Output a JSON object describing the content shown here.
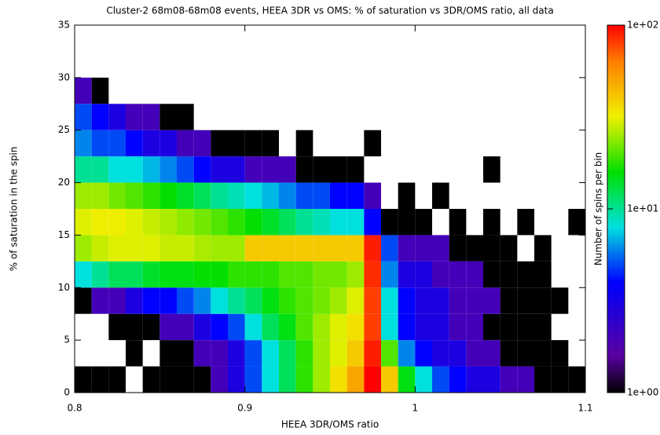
{
  "chart_data": {
    "type": "heatmap",
    "title": "Cluster-2 68m08-68m08 events, HEEA 3DR vs OMS: % of saturation vs 3DR/OMS ratio, all data",
    "xlabel": "HEEA 3DR/OMS ratio",
    "ylabel": "% of saturation in the spin",
    "xlim": [
      0.8,
      1.1
    ],
    "xticks": [
      0.8,
      0.9,
      1,
      1.1
    ],
    "ylim": [
      0,
      35
    ],
    "yticks": [
      0,
      5,
      10,
      15,
      20,
      25,
      30,
      35
    ],
    "xbins": [
      0.8,
      0.81,
      0.82,
      0.83,
      0.84,
      0.85,
      0.86,
      0.87,
      0.88,
      0.89,
      0.9,
      0.91,
      0.92,
      0.93,
      0.94,
      0.95,
      0.96,
      0.97,
      0.98,
      0.99,
      1,
      1.01,
      1.02,
      1.03,
      1.04,
      1.05,
      1.06,
      1.07,
      1.08,
      1.09,
      1.1
    ],
    "ybins": [
      0,
      2.5,
      5,
      7.5,
      10,
      12.5,
      15,
      17.5,
      20,
      22.5,
      25,
      27.5,
      30,
      32.5,
      35
    ],
    "z": [
      [
        1,
        1,
        1,
        null,
        1,
        1,
        1,
        1,
        2,
        3,
        5,
        8,
        12,
        18,
        25,
        35,
        50,
        100,
        40,
        15,
        8,
        5,
        4,
        3,
        3,
        2,
        2,
        1,
        1,
        1
      ],
      [
        null,
        null,
        null,
        1,
        null,
        1,
        1,
        2,
        2,
        3,
        5,
        8,
        12,
        18,
        25,
        30,
        40,
        90,
        20,
        6,
        4,
        3,
        3,
        2,
        2,
        1,
        1,
        1,
        1,
        null
      ],
      [
        null,
        null,
        1,
        1,
        1,
        2,
        2,
        3,
        4,
        5,
        8,
        12,
        15,
        20,
        25,
        30,
        35,
        80,
        8,
        4,
        3,
        3,
        2,
        2,
        1,
        1,
        1,
        1,
        null,
        null
      ],
      [
        1,
        2,
        2,
        3,
        4,
        4,
        5,
        6,
        8,
        10,
        12,
        15,
        18,
        20,
        22,
        25,
        30,
        80,
        8,
        4,
        3,
        3,
        2,
        2,
        2,
        1,
        1,
        1,
        1,
        null
      ],
      [
        8,
        10,
        12,
        12,
        14,
        15,
        15,
        16,
        16,
        18,
        18,
        18,
        20,
        20,
        22,
        22,
        25,
        85,
        6,
        3,
        3,
        2,
        2,
        2,
        1,
        1,
        1,
        1,
        null,
        null
      ],
      [
        25,
        28,
        30,
        30,
        30,
        28,
        28,
        26,
        25,
        25,
        40,
        40,
        40,
        40,
        40,
        40,
        40,
        90,
        5,
        2,
        2,
        2,
        1,
        1,
        1,
        1,
        null,
        1,
        null,
        null
      ],
      [
        30,
        32,
        32,
        30,
        28,
        26,
        24,
        22,
        20,
        18,
        16,
        14,
        12,
        10,
        9,
        8,
        8,
        4,
        1,
        1,
        1,
        null,
        1,
        null,
        1,
        null,
        1,
        null,
        null,
        1
      ],
      [
        25,
        25,
        22,
        20,
        18,
        16,
        14,
        12,
        10,
        9,
        8,
        7,
        6,
        5,
        5,
        4,
        4,
        2,
        null,
        1,
        null,
        1,
        null,
        null,
        null,
        null,
        null,
        null,
        null,
        null
      ],
      [
        10,
        10,
        8,
        8,
        7,
        6,
        5,
        4,
        3,
        3,
        2,
        2,
        2,
        1,
        1,
        1,
        1,
        null,
        null,
        null,
        null,
        null,
        null,
        null,
        1,
        null,
        null,
        null,
        null,
        null
      ],
      [
        6,
        5,
        5,
        4,
        3,
        3,
        2,
        2,
        1,
        1,
        1,
        1,
        null,
        1,
        null,
        null,
        null,
        1,
        null,
        null,
        null,
        null,
        null,
        null,
        null,
        null,
        null,
        null,
        null,
        null
      ],
      [
        5,
        4,
        3,
        2,
        2,
        1,
        1,
        null,
        null,
        null,
        null,
        null,
        null,
        null,
        null,
        null,
        null,
        null,
        null,
        null,
        null,
        null,
        null,
        null,
        null,
        null,
        null,
        null,
        null,
        null
      ],
      [
        2,
        1,
        null,
        null,
        null,
        null,
        null,
        null,
        null,
        null,
        null,
        null,
        null,
        null,
        null,
        null,
        null,
        null,
        null,
        null,
        null,
        null,
        null,
        null,
        null,
        null,
        null,
        null,
        null,
        null
      ],
      [
        null,
        null,
        null,
        null,
        null,
        null,
        null,
        null,
        null,
        null,
        null,
        null,
        null,
        null,
        null,
        null,
        null,
        null,
        null,
        null,
        null,
        null,
        null,
        null,
        null,
        null,
        null,
        null,
        null,
        null
      ],
      [
        null,
        null,
        null,
        null,
        null,
        null,
        null,
        null,
        null,
        null,
        null,
        null,
        null,
        null,
        null,
        null,
        null,
        null,
        null,
        null,
        null,
        null,
        null,
        null,
        null,
        null,
        null,
        null,
        null,
        null
      ]
    ],
    "colorbar": {
      "label": "Number of spins per bin",
      "log": true,
      "lim": [
        1,
        100
      ],
      "ticks": [
        {
          "value": 1,
          "label": "1e+00"
        },
        {
          "value": 10,
          "label": "1e+01"
        },
        {
          "value": 100,
          "label": "1e+02"
        }
      ]
    }
  }
}
